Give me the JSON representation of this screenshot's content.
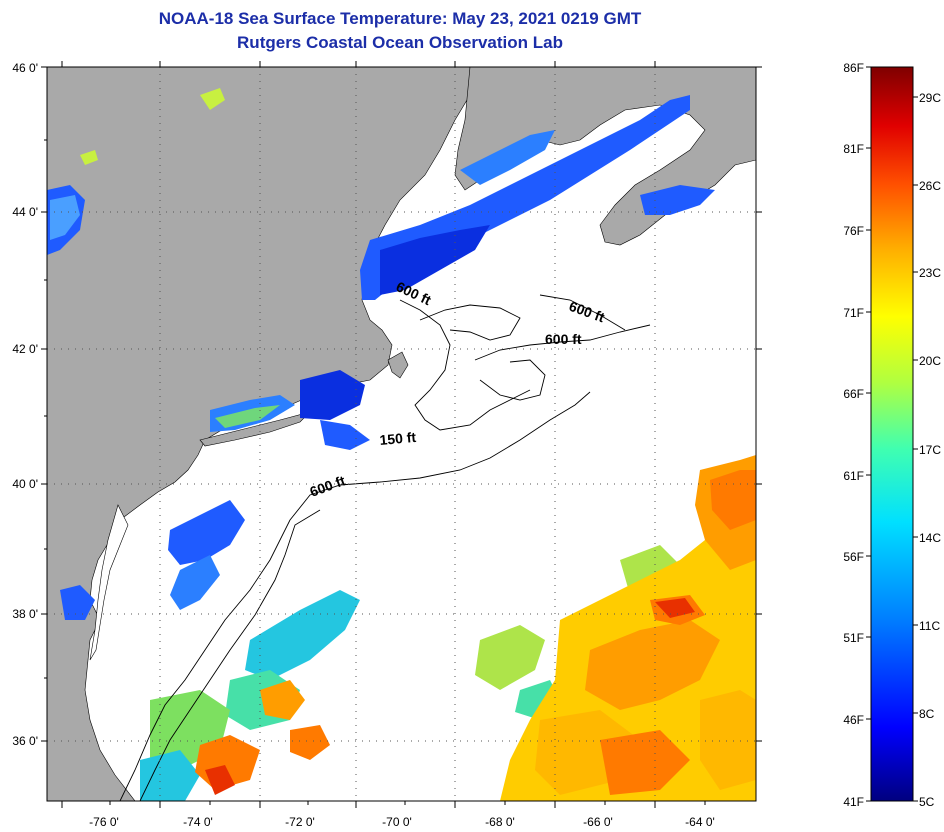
{
  "title": {
    "line1": "NOAA-18 Sea Surface Temperature:  May 23, 2021 0219 GMT",
    "line2": "Rutgers Coastal Ocean Observation Lab"
  },
  "map": {
    "lon_ticks": [
      "-76 0'",
      "-74 0'",
      "-72 0'",
      "-70 0'",
      "-68 0'",
      "-66 0'",
      "-64 0'"
    ],
    "lat_ticks": [
      "46 0'",
      "44 0'",
      "42 0'",
      "40 0'",
      "38 0'",
      "36 0'"
    ],
    "contour_labels": [
      "600 ft",
      "600 ft",
      "600 ft",
      "150 ft",
      "600 ft"
    ],
    "land_color": "#a9a9a9",
    "cloud_color": "#ffffff"
  },
  "colorbar": {
    "fahrenheit": [
      "86F",
      "81F",
      "76F",
      "71F",
      "66F",
      "61F",
      "56F",
      "51F",
      "46F",
      "41F"
    ],
    "celsius": [
      "29C",
      "26C",
      "23C",
      "20C",
      "17C",
      "14C",
      "11C",
      "8C",
      "5C"
    ],
    "colors": [
      "#00007f",
      "#0000ff",
      "#0080ff",
      "#00e0ff",
      "#40ffb0",
      "#b0ff40",
      "#ffff00",
      "#ffb000",
      "#ff5000",
      "#e00000",
      "#7f0000"
    ]
  }
}
